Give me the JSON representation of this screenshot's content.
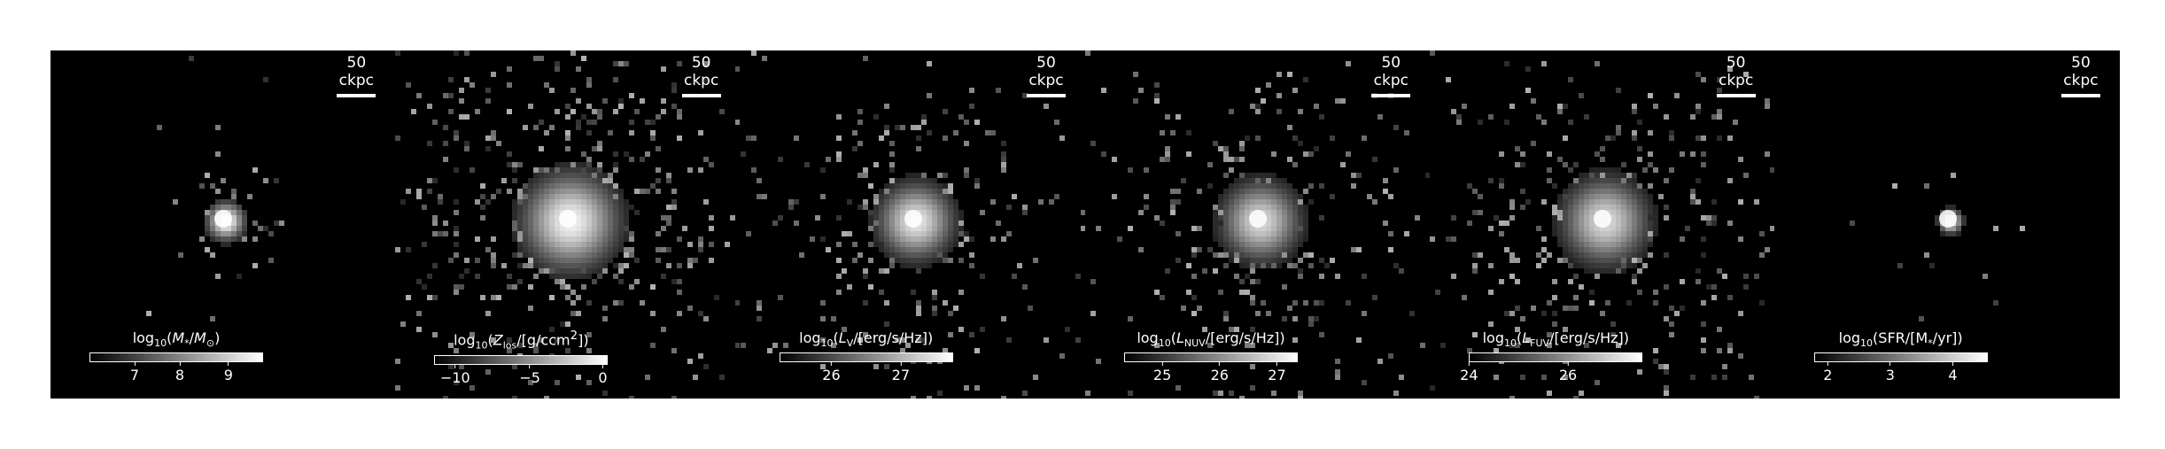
{
  "scale_label": "50 ckpc",
  "panels": [
    {
      "cbar_title_html": "log<sub>10</sub>(<i>M</i><sub>*</sub>/<i>M</i><sub>⊙</sub>)",
      "ticks": [
        {
          "label": "7",
          "pos": 0.26
        },
        {
          "label": "8",
          "pos": 0.52
        },
        {
          "label": "9",
          "pos": 0.8
        }
      ],
      "spread": 0.55,
      "density": 0.35,
      "core": 1.0
    },
    {
      "cbar_title_html": "log<sub>10</sub>(<i>Z</i><sub>los</sub>/[g/ccm<sup>2</sup>])",
      "ticks": [
        {
          "label": "−10",
          "pos": 0.12
        },
        {
          "label": "−5",
          "pos": 0.55
        },
        {
          "label": "0",
          "pos": 0.97
        }
      ],
      "spread": 1.4,
      "density": 0.9,
      "core": 0.95
    },
    {
      "cbar_title_html": "log<sub>10</sub>(<i>L</i><sub>V</sub>/[erg/s/Hz])",
      "ticks": [
        {
          "label": "26",
          "pos": 0.3
        },
        {
          "label": "27",
          "pos": 0.7
        }
      ],
      "spread": 1.1,
      "density": 0.7,
      "core": 0.9
    },
    {
      "cbar_title_html": "log<sub>10</sub>(<i>L</i><sub>NUV</sub>/[erg/s/Hz])",
      "ticks": [
        {
          "label": "25",
          "pos": 0.22
        },
        {
          "label": "26",
          "pos": 0.55
        },
        {
          "label": "27",
          "pos": 0.88
        }
      ],
      "spread": 1.15,
      "density": 0.75,
      "core": 0.85
    },
    {
      "cbar_title_html": "log<sub>10</sub>(<i>L</i><sub>FUV</sub>/[erg/s/Hz])",
      "ticks": [
        {
          "label": "24",
          "pos": 0.0
        },
        {
          "label": "26",
          "pos": 0.57
        }
      ],
      "spread": 1.25,
      "density": 0.8,
      "core": 0.85
    },
    {
      "cbar_title_html": "log<sub>10</sub>(SFR/[M<sub>*</sub>/yr])",
      "ticks": [
        {
          "label": "2",
          "pos": 0.08
        },
        {
          "label": "3",
          "pos": 0.44
        },
        {
          "label": "4",
          "pos": 0.8
        }
      ],
      "spread": 0.35,
      "density": 0.25,
      "core": 0.95
    }
  ]
}
